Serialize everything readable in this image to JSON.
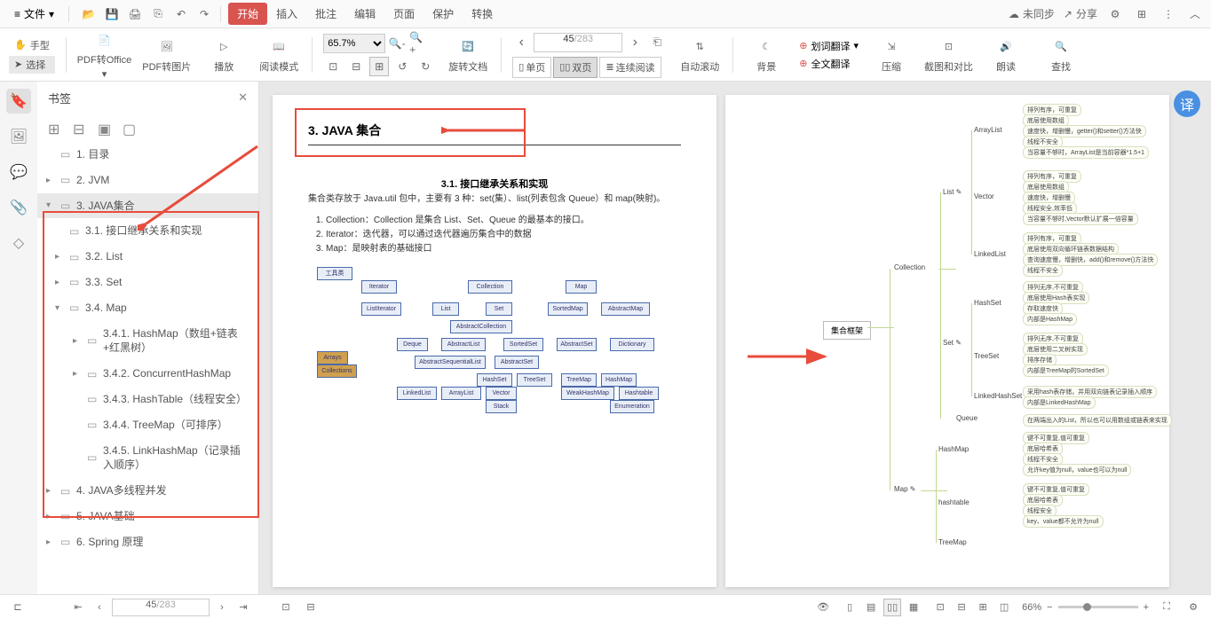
{
  "menu": {
    "file": "文件",
    "items": [
      "开始",
      "插入",
      "批注",
      "编辑",
      "页面",
      "保护",
      "转换"
    ],
    "active_index": 0,
    "right": {
      "unsync": "未同步",
      "share": "分享"
    }
  },
  "ribbon": {
    "hand": "手型",
    "select": "选择",
    "pdf_office": "PDF转Office",
    "pdf_img": "PDF转图片",
    "play": "播放",
    "read_mode": "阅读模式",
    "zoom_val": "65.7%",
    "rotate": "旋转文档",
    "page_cur": "45",
    "page_total": "/283",
    "single": "单页",
    "double": "双页",
    "continuous": "连续阅读",
    "autoscroll": "自动滚动",
    "bg": "背景",
    "word_trans": "划词翻译",
    "full_trans": "全文翻译",
    "compress": "压缩",
    "screenshot": "截图和对比",
    "read_aloud": "朗读",
    "find": "查找"
  },
  "bookmarks": {
    "title": "书签",
    "items": [
      {
        "label": "1. 目录",
        "depth": 0,
        "arrow": ""
      },
      {
        "label": "2. JVM",
        "depth": 0,
        "arrow": "▸"
      },
      {
        "label": "3. JAVA集合",
        "depth": 0,
        "arrow": "▾",
        "selected": true
      },
      {
        "label": "3.1. 接口继承关系和实现",
        "depth": 1,
        "arrow": ""
      },
      {
        "label": "3.2. List",
        "depth": 1,
        "arrow": "▸"
      },
      {
        "label": "3.3. Set",
        "depth": 1,
        "arrow": "▸"
      },
      {
        "label": "3.4. Map",
        "depth": 1,
        "arrow": "▾"
      },
      {
        "label": "3.4.1. HashMap（数组+链表+红黑树）",
        "depth": 2,
        "arrow": "▸"
      },
      {
        "label": "3.4.2. ConcurrentHashMap",
        "depth": 2,
        "arrow": "▸"
      },
      {
        "label": "3.4.3. HashTable（线程安全）",
        "depth": 2,
        "arrow": ""
      },
      {
        "label": "3.4.4. TreeMap（可排序）",
        "depth": 2,
        "arrow": ""
      },
      {
        "label": "3.4.5. LinkHashMap（记录插入顺序）",
        "depth": 2,
        "arrow": ""
      },
      {
        "label": "4. JAVA多线程并发",
        "depth": 0,
        "arrow": "▸"
      },
      {
        "label": "5. JAVA基础",
        "depth": 0,
        "arrow": "▸"
      },
      {
        "label": "6. Spring 原理",
        "depth": 0,
        "arrow": "▸"
      }
    ]
  },
  "doc": {
    "h3": "3. JAVA 集合",
    "h31": "3.1. 接口继承关系和实现",
    "intro": "集合类存放于 Java.util 包中，主要有 3 种：set(集）、list(列表包含 Queue）和 map(映射)。",
    "li1": "Collection：Collection 是集合 List、Set、Queue 的最基本的接口。",
    "li2": "Iterator：迭代器，可以通过迭代器遍历集合中的数据",
    "li3": "Map：是映射表的基础接口"
  },
  "mindmap": {
    "root": "集合框架",
    "l1": [
      "Collection",
      "Map"
    ],
    "collection_children": [
      "List",
      "Set",
      "Queue"
    ],
    "list_children": [
      "ArrayList",
      "Vector",
      "LinkedList"
    ],
    "set_children": [
      "HashSet",
      "TreeSet",
      "LinkedHashSet"
    ],
    "map_children": [
      "HashMap",
      "hashtable",
      "TreeMap"
    ],
    "leaves": {
      "arraylist": [
        "排列有序，可重复",
        "底层使用数组",
        "速度快，增删慢，getter()和setter()方法快",
        "线程不安全",
        "当容量不够时，ArrayList是当前容器*1.5+1"
      ],
      "vector": [
        "排列有序，可重复",
        "底层使用数组",
        "速度快，增删慢",
        "线程安全,效率低",
        "当容量不够时,Vector默认扩展一倍容量"
      ],
      "linkedlist": [
        "排列有序，可重复",
        "底层使用双向循环链表数据结构",
        "查询速度慢，增删快，add()和remove()方法快",
        "线程不安全"
      ],
      "hashset": [
        "排列无序,不可重复",
        "底层使用Hash表实现",
        "存取速度快",
        "内部是HashMap"
      ],
      "treeset": [
        "排列无序,不可重复",
        "底层使用二叉树实现",
        "排序存储",
        "内部是TreeMap的SortedSet"
      ],
      "linkedhashset": [
        "采用hash表存储，并用双向链表记录插入顺序",
        "内部是LinkedHashMap"
      ],
      "queue": [
        "在两端出入的List，所以也可以用数组或链表来实现"
      ],
      "hashmap": [
        "键不可重复,值可重复",
        "底层哈希表",
        "线程不安全",
        "允许key值为null，value也可以为null"
      ],
      "hashtable": [
        "键不可重复,值可重复",
        "底层哈希表",
        "线程安全",
        "key、value都不允许为null"
      ]
    }
  },
  "status": {
    "page_cur": "45",
    "page_total": "/283",
    "zoom_val": "66%"
  },
  "colors": {
    "accent_red": "#d9534f",
    "annotation_red": "#e74c3c",
    "mm_border": "#c0d890"
  }
}
